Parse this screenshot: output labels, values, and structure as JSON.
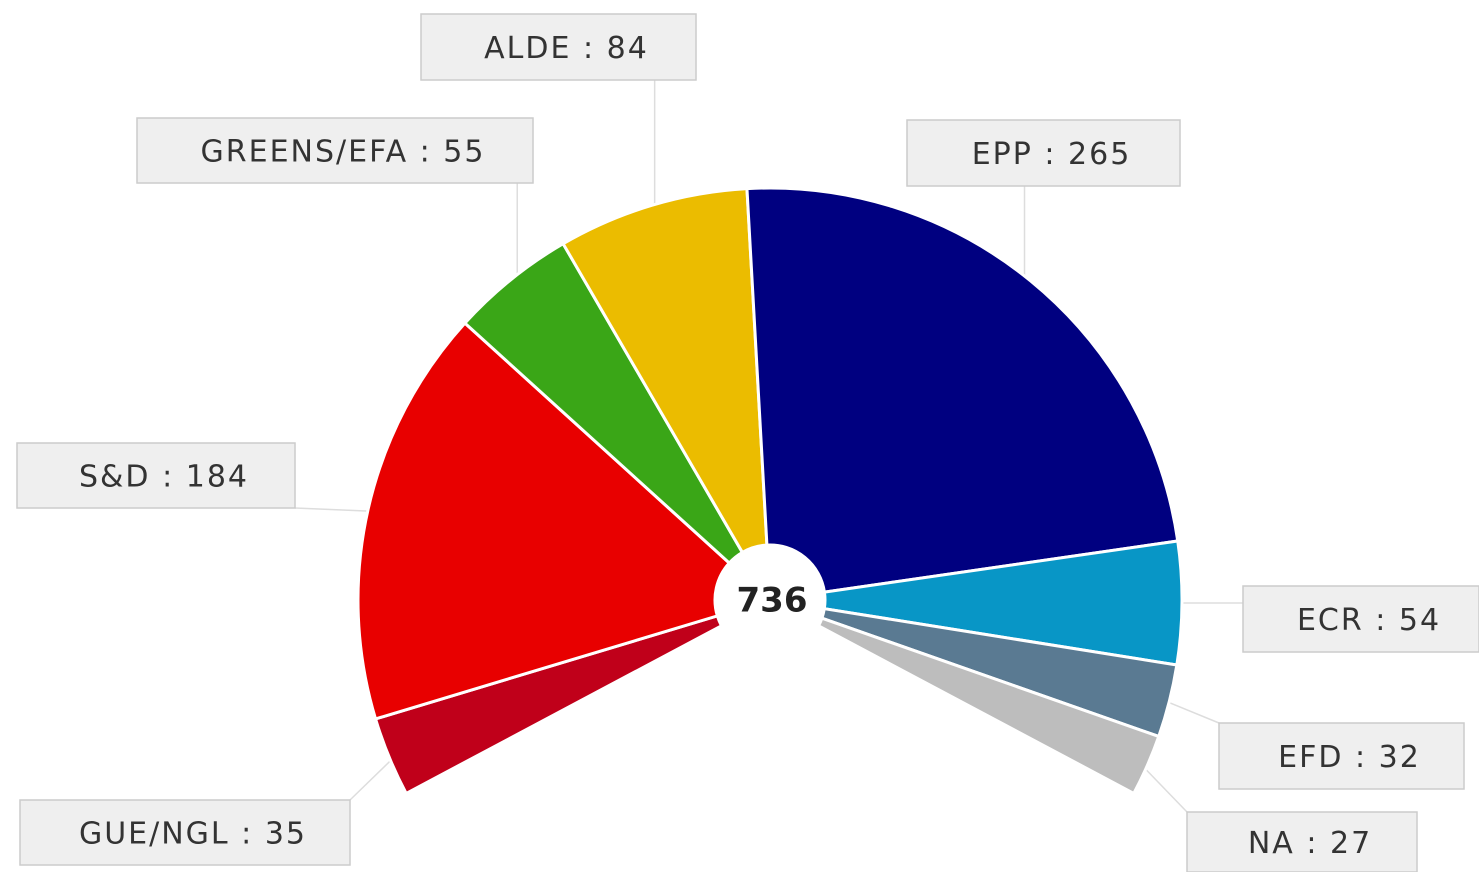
{
  "chart_data": {
    "type": "parliament",
    "categories": [
      "GUE/NGL",
      "S&D",
      "GREENS/EFA",
      "ALDE",
      "EPP",
      "ECR",
      "EFD",
      "NA"
    ],
    "values": [
      35,
      184,
      55,
      84,
      265,
      54,
      32,
      27
    ],
    "colors": [
      "#c0001a",
      "#e80000",
      "#3aa617",
      "#ebbc00",
      "#000080",
      "#0896c6",
      "#5a7a92",
      "#bdbdbd"
    ],
    "separator": " : ",
    "total": 736
  }
}
